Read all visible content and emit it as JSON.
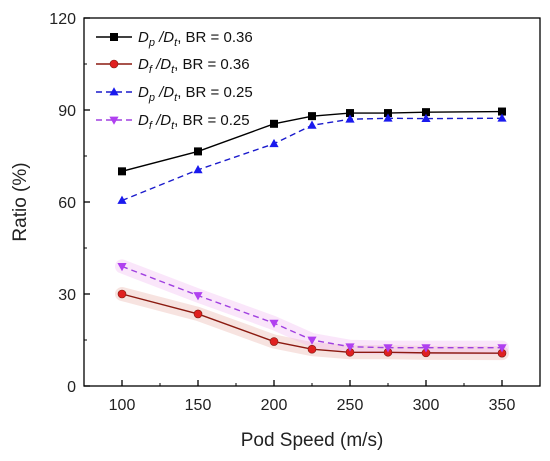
{
  "chart_data": {
    "type": "line",
    "xlabel": "Pod Speed (m/s)",
    "ylabel": "Ratio (%)",
    "xlim": [
      75,
      375
    ],
    "ylim": [
      0,
      120
    ],
    "xticks": [
      100,
      150,
      200,
      250,
      300,
      350
    ],
    "yticks": [
      0,
      30,
      60,
      90,
      120
    ],
    "grid": false,
    "legend_position": "top-left",
    "x": [
      100,
      150,
      200,
      225,
      250,
      275,
      300,
      350
    ],
    "series": [
      {
        "name_main": "D",
        "name_sub1": "p",
        "name_mid": " /D",
        "name_sub2": "t",
        "name_tail": ", BR = 0.36",
        "values": [
          70,
          76.5,
          85.5,
          88,
          89,
          89,
          89.3,
          89.5
        ],
        "color": "#000000",
        "marker": "square",
        "dash": "solid"
      },
      {
        "name_main": "D",
        "name_sub1": "f",
        "name_mid": " /D",
        "name_sub2": "t",
        "name_tail": ", BR = 0.36",
        "values": [
          30,
          23.5,
          14.5,
          12,
          11,
          11,
          10.8,
          10.7
        ],
        "color": "#8b1a10",
        "marker_color": "#e02020",
        "marker": "circle",
        "dash": "solid"
      },
      {
        "name_main": "D",
        "name_sub1": "p",
        "name_mid": " /D",
        "name_sub2": "t",
        "name_tail": ", BR = 0.25",
        "values": [
          60.5,
          70.5,
          79,
          85,
          87,
          87.3,
          87.2,
          87.3
        ],
        "color": "#1a1acc",
        "marker_color": "#1a1aee",
        "marker": "triangle-up",
        "dash": "dashed"
      },
      {
        "name_main": "D",
        "name_sub1": "f",
        "name_mid": " /D",
        "name_sub2": "t",
        "name_tail": ", BR = 0.25",
        "values": [
          39,
          29.5,
          20.5,
          15,
          12.8,
          12.5,
          12.5,
          12.5
        ],
        "color": "#a040e0",
        "marker_color": "#b040f0",
        "marker": "triangle-down",
        "dash": "dashed"
      }
    ]
  }
}
